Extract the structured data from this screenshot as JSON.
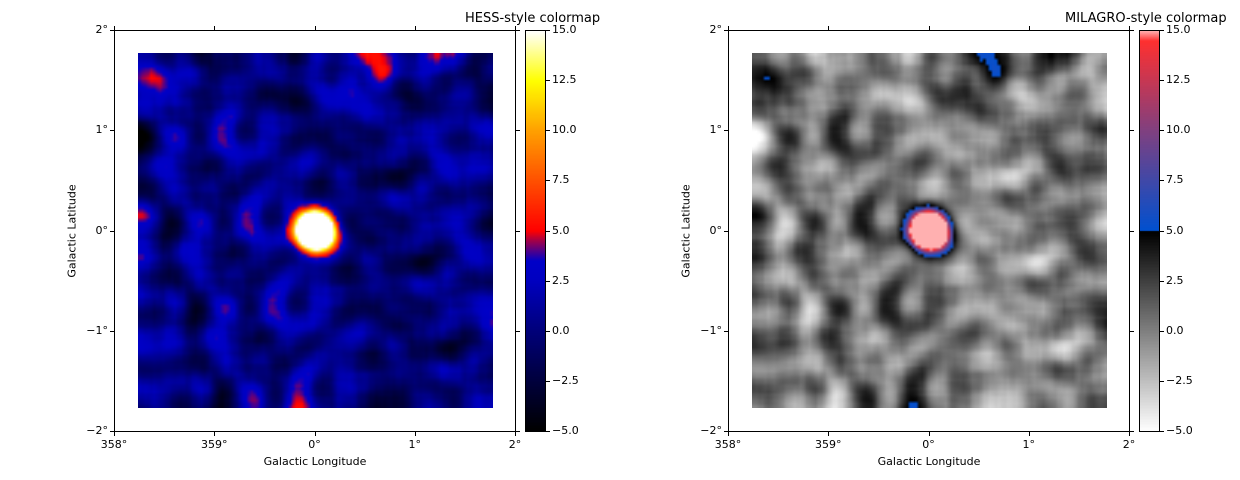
{
  "chart_data": [
    {
      "type": "heatmap",
      "title": "HESS-style colormap",
      "xlabel": "Galactic Longitude",
      "ylabel": "Galactic Latitude",
      "xlim": [
        2,
        -2
      ],
      "ylim": [
        -2,
        2
      ],
      "x_ticks": [
        "358°",
        "359°",
        "0°",
        "1°",
        "2°"
      ],
      "y_ticks": [
        "2°",
        "1°",
        "0°",
        "−1°",
        "−2°"
      ],
      "image_extent_deg": [
        1.75,
        -1.75,
        -1.75,
        1.75
      ],
      "source": {
        "l": 0,
        "b": 0,
        "radius_deg": 0.25
      },
      "colorbar": {
        "clim": [
          -5,
          15
        ],
        "ticks": [
          "15.0",
          "12.5",
          "10.0",
          "7.5",
          "5.0",
          "2.5",
          "0.0",
          "−2.5",
          "−5.0"
        ]
      },
      "colormap": "hess",
      "colormap_stops": [
        [
          -5,
          "#000000"
        ],
        [
          0,
          "#00007a"
        ],
        [
          2.5,
          "#0000c0"
        ],
        [
          3.5,
          "#0000c8"
        ],
        [
          4.5,
          "#a0004a"
        ],
        [
          5,
          "#ff0000"
        ],
        [
          7.5,
          "#ff5000"
        ],
        [
          10,
          "#ffa000"
        ],
        [
          12.5,
          "#ffff00"
        ],
        [
          15,
          "#ffffff"
        ]
      ]
    },
    {
      "type": "heatmap",
      "title": "MILAGRO-style colormap",
      "xlabel": "Galactic Longitude",
      "ylabel": "Galactic Latitude",
      "xlim": [
        2,
        -2
      ],
      "ylim": [
        -2,
        2
      ],
      "x_ticks": [
        "358°",
        "359°",
        "0°",
        "1°",
        "2°"
      ],
      "y_ticks": [
        "2°",
        "1°",
        "0°",
        "−1°",
        "−2°"
      ],
      "image_extent_deg": [
        1.75,
        -1.75,
        -1.75,
        1.75
      ],
      "source": {
        "l": 0,
        "b": 0,
        "radius_deg": 0.25
      },
      "colorbar": {
        "clim": [
          -5,
          15
        ],
        "ticks": [
          "15.0",
          "12.5",
          "10.0",
          "7.5",
          "5.0",
          "2.5",
          "0.0",
          "−2.5",
          "−5.0"
        ]
      },
      "colormap": "milagro",
      "colormap_stops": [
        [
          -5,
          "#ffffff"
        ],
        [
          4.99,
          "#000000"
        ],
        [
          5,
          "#0050d0"
        ],
        [
          10,
          "#804080"
        ],
        [
          14.5,
          "#ff3030"
        ],
        [
          15,
          "#ffb0b0"
        ]
      ]
    }
  ]
}
